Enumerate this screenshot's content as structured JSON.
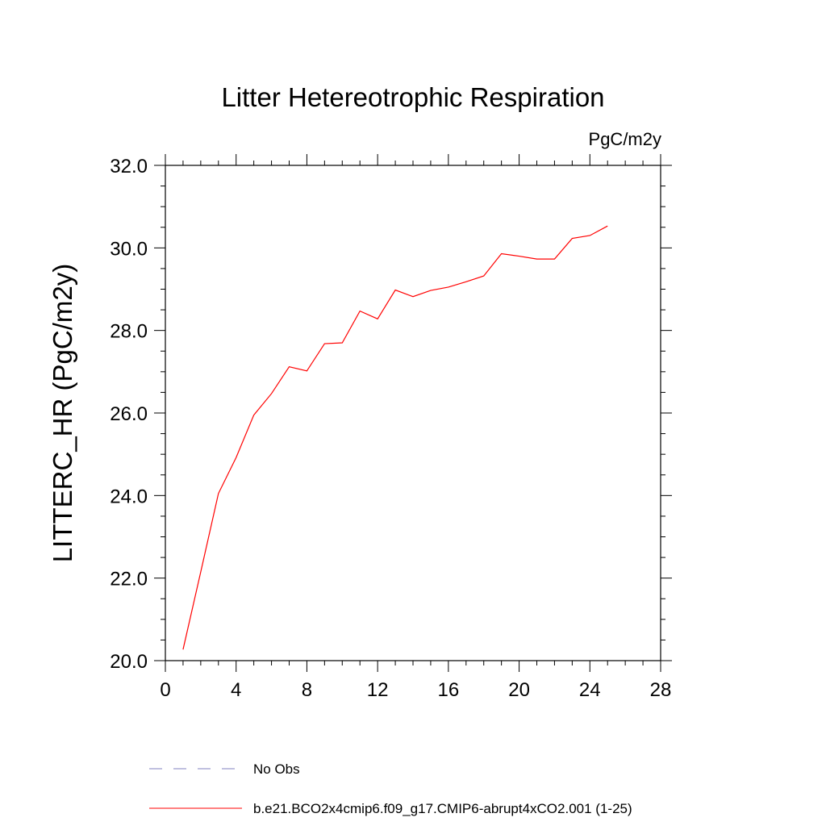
{
  "chart_data": {
    "type": "line",
    "title": "Litter Hetereotrophic Respiration",
    "units_label": "PgC/m2y",
    "ylabel": "LITTERC_HR  (PgC/m2y)",
    "xlabel": "",
    "xlim": [
      0,
      28
    ],
    "ylim": [
      20.0,
      32.0
    ],
    "x_ticks": [
      0,
      4,
      8,
      12,
      16,
      20,
      24,
      28
    ],
    "x_tick_labels": [
      "0",
      "4",
      "8",
      "12",
      "16",
      "20",
      "24",
      "28"
    ],
    "y_ticks": [
      20,
      22,
      24,
      26,
      28,
      30,
      32
    ],
    "y_tick_labels": [
      "20.0",
      "22.0",
      "24.0",
      "26.0",
      "28.0",
      "30.0",
      "32.0"
    ],
    "grid": false,
    "legend_position": "bottom",
    "series": [
      {
        "name": "No Obs",
        "color": "#8080c0",
        "style": "dashed",
        "x": [],
        "values": []
      },
      {
        "name": "b.e21.BCO2x4cmip6.f09_g17.CMIP6-abrupt4xCO2.001 (1-25)",
        "color": "#ff0000",
        "style": "solid",
        "x": [
          1,
          2,
          3,
          4,
          5,
          6,
          7,
          8,
          9,
          10,
          11,
          12,
          13,
          14,
          15,
          16,
          17,
          18,
          19,
          20,
          21,
          22,
          23,
          24,
          25
        ],
        "values": [
          20.27,
          22.15,
          24.05,
          24.92,
          25.95,
          26.47,
          27.12,
          27.02,
          27.68,
          27.7,
          28.47,
          28.28,
          28.98,
          28.82,
          28.97,
          29.05,
          29.18,
          29.32,
          29.86,
          29.8,
          29.73,
          29.73,
          30.23,
          30.3,
          30.53
        ]
      }
    ]
  }
}
